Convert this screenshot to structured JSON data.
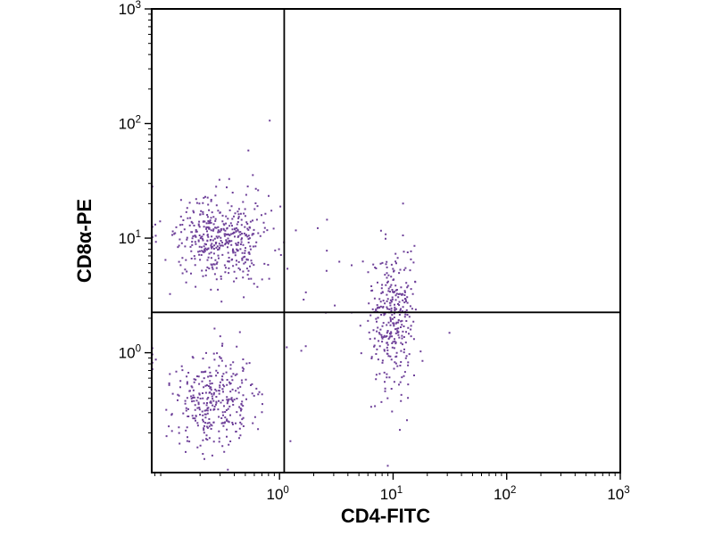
{
  "figure": {
    "background": "#ffffff"
  },
  "chart_data": {
    "type": "scatter",
    "subtype": "flow-cytometry-dot-plot",
    "title": "",
    "xlabel": "CD4-FITC",
    "ylabel": "CD8α-PE",
    "x_scale": "log",
    "y_scale": "log",
    "xlim": [
      0.075,
      1000
    ],
    "ylim": [
      0.09,
      1000
    ],
    "tick_base": "10",
    "x_axis": {
      "label": "CD4-FITC",
      "ticks": [
        {
          "v": 1,
          "exp": "0"
        },
        {
          "v": 10,
          "exp": "1"
        },
        {
          "v": 100,
          "exp": "2"
        },
        {
          "v": 1000,
          "exp": "3"
        }
      ]
    },
    "y_axis": {
      "label": "CD8α-PE",
      "ticks": [
        {
          "v": 1,
          "exp": "0"
        },
        {
          "v": 10,
          "exp": "1"
        },
        {
          "v": 100,
          "exp": "2"
        },
        {
          "v": 1000,
          "exp": "3"
        }
      ]
    },
    "grid": false,
    "legend": "none",
    "point_color": "#5E2B8E",
    "axis_color": "#000000",
    "quadrant_gate": {
      "x": 1.1,
      "y": 2.25
    },
    "clusters": [
      {
        "name": "CD8-positive CD4-negative (upper left)",
        "log_cx": -0.52,
        "log_cy": 1.0,
        "sx": 0.2,
        "sy": 0.18,
        "count": 430
      },
      {
        "name": "double negative (lower left)",
        "log_cx": -0.57,
        "log_cy": -0.4,
        "sx": 0.19,
        "sy": 0.21,
        "count": 320
      },
      {
        "name": "CD4-positive (right)",
        "log_cx": 0.99,
        "log_cy": 0.28,
        "sx": 0.1,
        "sy": 0.31,
        "count": 320
      },
      {
        "name": "sparse background",
        "log_cx": 0.1,
        "log_cy": 0.55,
        "sx": 0.85,
        "sy": 0.65,
        "count": 45
      }
    ],
    "random_seed": 20240613
  }
}
